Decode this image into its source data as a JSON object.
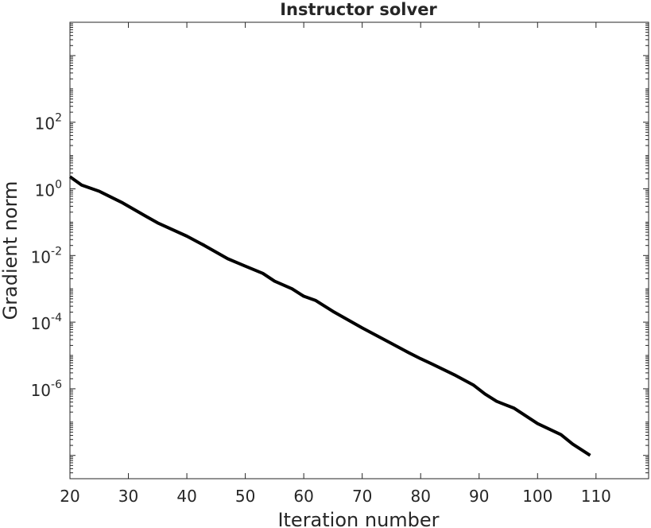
{
  "chart_data": {
    "type": "line",
    "title": "Instructor solver",
    "xlabel": "Iteration number",
    "ylabel": "Gradient norm",
    "xlim": [
      20,
      119
    ],
    "ylim": [
      2e-09,
      100000.0
    ],
    "yscale": "log",
    "grid": false,
    "xticks": [
      20,
      30,
      40,
      50,
      60,
      70,
      80,
      90,
      100,
      110
    ],
    "xtick_labels": [
      "20",
      "30",
      "40",
      "50",
      "60",
      "70",
      "80",
      "90",
      "100",
      "110"
    ],
    "yticks": [
      100.0,
      1.0,
      0.01,
      0.0001,
      1e-06
    ],
    "ytick_labels": [
      {
        "base": "10",
        "exp": "2"
      },
      {
        "base": "10",
        "exp": "0"
      },
      {
        "base": "10",
        "exp": "-2"
      },
      {
        "base": "10",
        "exp": "-4"
      },
      {
        "base": "10",
        "exp": "-6"
      }
    ],
    "series": [
      {
        "color": "#000000",
        "x": [
          20,
          22,
          25,
          29,
          33,
          35,
          40,
          43,
          47,
          50,
          53,
          55,
          58,
          60,
          62,
          65,
          70,
          75,
          78,
          80,
          82,
          86,
          89,
          91,
          93,
          96,
          100,
          104,
          106,
          109
        ],
        "y": [
          2.3,
          1.3,
          0.85,
          0.38,
          0.15,
          0.095,
          0.038,
          0.02,
          0.008,
          0.0048,
          0.0029,
          0.0017,
          0.001,
          0.0006,
          0.00045,
          0.00021,
          6.7e-05,
          2.3e-05,
          1.2e-05,
          8e-06,
          5.5e-06,
          2.5e-06,
          1.3e-06,
          7e-07,
          4.2e-07,
          2.6e-07,
          9e-08,
          4.2e-08,
          2.2e-08,
          1e-08
        ]
      }
    ]
  }
}
